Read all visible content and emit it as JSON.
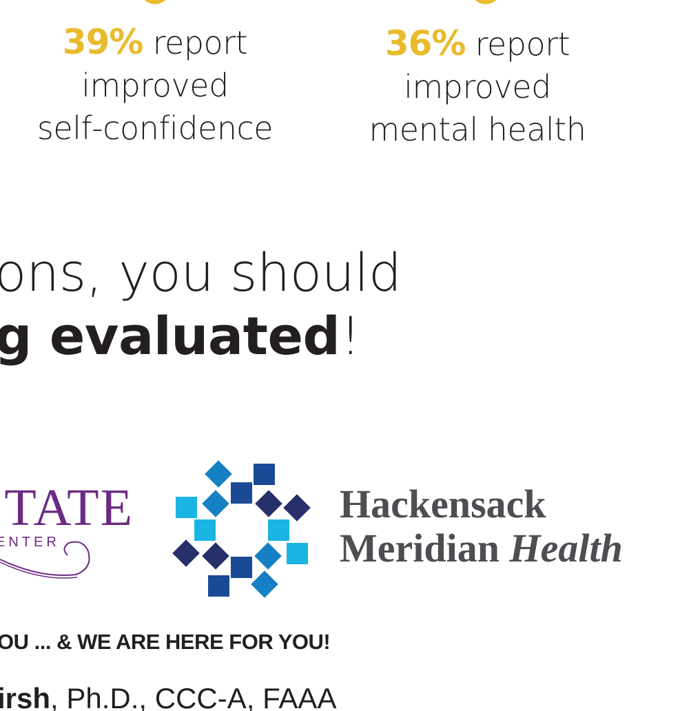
{
  "stats": [
    {
      "percent": "39%",
      "text_1": " report",
      "text_2": "improved",
      "text_3": "self-confidence"
    },
    {
      "percent": "36%",
      "text_1": " report",
      "text_2": "improved",
      "text_3": "mental health"
    }
  ],
  "headline": {
    "line1": "ons, you should",
    "line2_bold": "g evaluated",
    "line2_end": "!"
  },
  "logos": {
    "tate": {
      "name": "TATE",
      "sub": "ENTER"
    },
    "hmh": {
      "line1": "Hackensack",
      "line2": "Meridian",
      "line2_italic": "Health"
    }
  },
  "colors": {
    "accent_yellow": "#e8bb2c",
    "tate_purple": "#6b2a83",
    "navy": "#27306b",
    "dark_blue": "#1a4a96",
    "mid_blue": "#1580c4",
    "cyan": "#1bb5e3",
    "hmh_gray": "#4d4d52"
  },
  "tagline": "OU ... & WE ARE HERE FOR YOU!",
  "contact": {
    "name_bold": "irsh",
    "credentials": ", Ph.D., CCC-A, FAAA"
  }
}
